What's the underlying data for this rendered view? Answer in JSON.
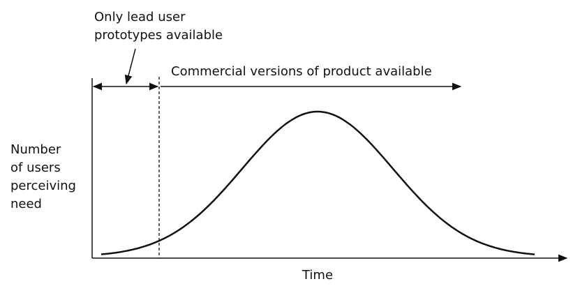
{
  "annotations": {
    "lead_user": [
      "Only lead user",
      "prototypes available"
    ],
    "commercial": "Commercial versions of product available"
  },
  "axes": {
    "y_label": [
      "Number",
      "of users",
      "perceiving",
      "need"
    ],
    "x_label": "Time"
  }
}
